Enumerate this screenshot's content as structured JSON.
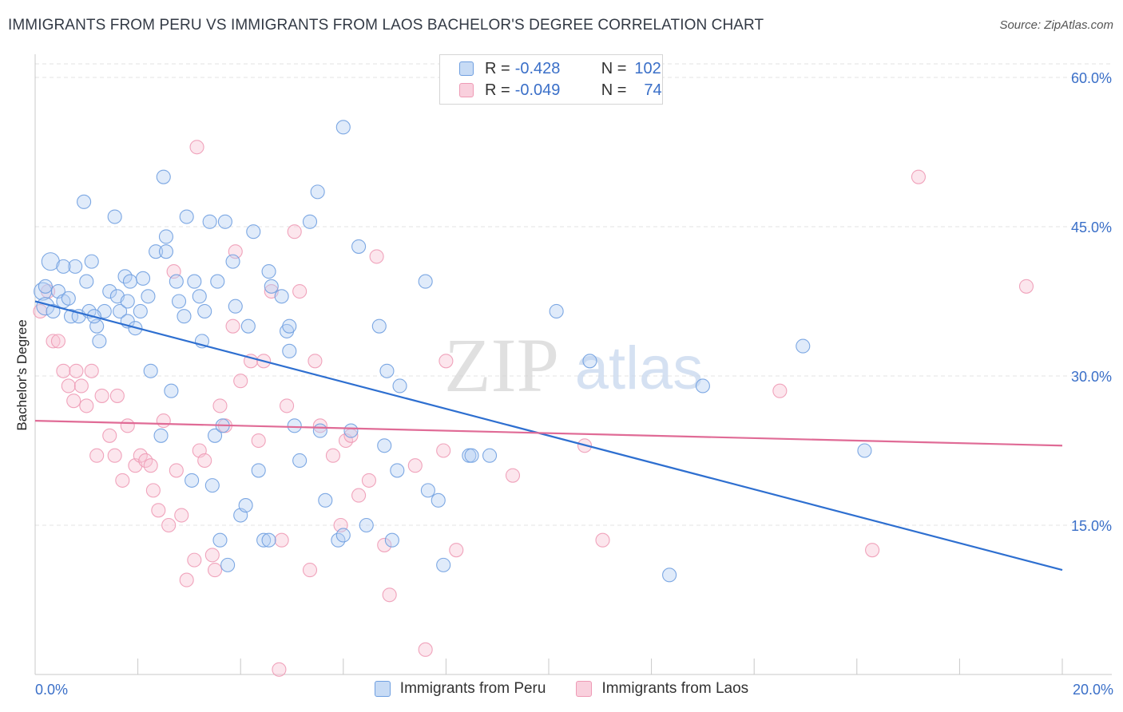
{
  "title": "IMMIGRANTS FROM PERU VS IMMIGRANTS FROM LAOS BACHELOR'S DEGREE CORRELATION CHART",
  "source": "Source: ZipAtlas.com",
  "watermark": {
    "zip": "ZIP",
    "atlas": "atlas"
  },
  "legend": {
    "peru": {
      "r_label": "R =",
      "r_value": "-0.428",
      "n_label": "N =",
      "n_value": "102"
    },
    "laos": {
      "r_label": "R =",
      "r_value": "-0.049",
      "n_label": "N =",
      "n_value": "74"
    }
  },
  "chart_data": {
    "type": "scatter",
    "ylabel": "Bachelor's Degree",
    "xlabel": "",
    "xlim": [
      0,
      20
    ],
    "ylim": [
      0,
      60
    ],
    "x_tick_labels": [
      "0.0%",
      "20.0%"
    ],
    "y_ticks": [
      15,
      30,
      45,
      60
    ],
    "y_tick_labels": [
      "15.0%",
      "30.0%",
      "45.0%",
      "60.0%"
    ],
    "grid": true,
    "legend_position": "bottom",
    "colors": {
      "peru": "#6f9fe0",
      "peru_line": "#2e6fd0",
      "laos": "#ee9ab5",
      "laos_line": "#e06b96",
      "tick_text": "#3a6fc8"
    },
    "series": [
      {
        "name": "Immigrants from Peru",
        "trend": {
          "x": [
            0,
            20
          ],
          "y": [
            37.5,
            10.5
          ]
        },
        "points": [
          [
            0.15,
            38.5
          ],
          [
            0.2,
            37.0
          ],
          [
            0.3,
            41.5
          ],
          [
            0.35,
            36.5
          ],
          [
            0.45,
            38.5
          ],
          [
            0.55,
            37.5
          ],
          [
            0.65,
            37.8
          ],
          [
            0.7,
            36.0
          ],
          [
            0.78,
            41.0
          ],
          [
            0.85,
            36.0
          ],
          [
            0.95,
            47.5
          ],
          [
            1.05,
            36.5
          ],
          [
            1.1,
            41.5
          ],
          [
            1.2,
            35.0
          ],
          [
            1.25,
            33.5
          ],
          [
            1.35,
            36.5
          ],
          [
            1.45,
            38.5
          ],
          [
            1.55,
            46.0
          ],
          [
            1.6,
            38.0
          ],
          [
            1.65,
            36.5
          ],
          [
            1.75,
            40.0
          ],
          [
            1.8,
            35.5
          ],
          [
            1.85,
            39.5
          ],
          [
            1.95,
            34.8
          ],
          [
            2.05,
            36.5
          ],
          [
            2.1,
            39.8
          ],
          [
            2.2,
            38.0
          ],
          [
            2.25,
            30.5
          ],
          [
            2.35,
            42.5
          ],
          [
            2.45,
            24.0
          ],
          [
            2.5,
            50.0
          ],
          [
            2.55,
            44.0
          ],
          [
            2.65,
            28.5
          ],
          [
            2.75,
            39.5
          ],
          [
            2.8,
            37.5
          ],
          [
            2.9,
            36.0
          ],
          [
            2.95,
            46.0
          ],
          [
            3.05,
            19.5
          ],
          [
            3.1,
            39.5
          ],
          [
            3.2,
            38.0
          ],
          [
            3.25,
            33.5
          ],
          [
            3.3,
            36.5
          ],
          [
            3.4,
            45.5
          ],
          [
            3.45,
            19.0
          ],
          [
            3.5,
            24.0
          ],
          [
            3.55,
            39.5
          ],
          [
            3.6,
            13.5
          ],
          [
            3.7,
            45.5
          ],
          [
            3.75,
            11.0
          ],
          [
            3.85,
            41.5
          ],
          [
            3.9,
            37.0
          ],
          [
            4.0,
            16.0
          ],
          [
            4.1,
            17.0
          ],
          [
            4.15,
            35.0
          ],
          [
            4.25,
            44.5
          ],
          [
            4.35,
            20.5
          ],
          [
            4.45,
            13.5
          ],
          [
            4.55,
            40.5
          ],
          [
            4.6,
            39.0
          ],
          [
            4.8,
            38.0
          ],
          [
            4.9,
            34.5
          ],
          [
            4.95,
            32.5
          ],
          [
            5.05,
            25.0
          ],
          [
            5.15,
            21.5
          ],
          [
            5.35,
            45.5
          ],
          [
            5.5,
            48.5
          ],
          [
            5.55,
            24.5
          ],
          [
            5.65,
            17.5
          ],
          [
            5.9,
            13.5
          ],
          [
            6.0,
            14.0
          ],
          [
            6.15,
            24.5
          ],
          [
            6.3,
            43.0
          ],
          [
            6.45,
            15.0
          ],
          [
            6.7,
            35.0
          ],
          [
            6.8,
            23.0
          ],
          [
            6.85,
            30.5
          ],
          [
            6.95,
            13.5
          ],
          [
            7.05,
            20.5
          ],
          [
            7.1,
            29.0
          ],
          [
            7.6,
            39.5
          ],
          [
            7.65,
            18.5
          ],
          [
            7.85,
            17.5
          ],
          [
            7.95,
            11.0
          ],
          [
            8.45,
            22.0
          ],
          [
            8.5,
            22.0
          ],
          [
            8.85,
            22.0
          ],
          [
            6.0,
            55.0
          ],
          [
            4.55,
            13.5
          ],
          [
            4.95,
            35.0
          ],
          [
            10.15,
            36.5
          ],
          [
            10.8,
            31.5
          ],
          [
            12.35,
            10.0
          ],
          [
            13.0,
            29.0
          ],
          [
            14.95,
            33.0
          ],
          [
            16.15,
            22.5
          ],
          [
            0.2,
            39.0
          ],
          [
            0.55,
            41.0
          ],
          [
            1.15,
            36.0
          ],
          [
            2.55,
            42.5
          ],
          [
            3.65,
            25.0
          ],
          [
            1.8,
            37.5
          ],
          [
            1.0,
            39.5
          ]
        ]
      },
      {
        "name": "Immigrants from Laos",
        "trend": {
          "x": [
            0,
            20
          ],
          "y": [
            25.5,
            23.0
          ]
        },
        "points": [
          [
            0.1,
            36.5
          ],
          [
            0.25,
            38.5
          ],
          [
            0.35,
            33.5
          ],
          [
            0.45,
            33.5
          ],
          [
            0.55,
            30.5
          ],
          [
            0.65,
            29.0
          ],
          [
            0.75,
            27.5
          ],
          [
            0.8,
            30.5
          ],
          [
            0.9,
            29.0
          ],
          [
            1.0,
            27.0
          ],
          [
            1.1,
            30.5
          ],
          [
            1.2,
            22.0
          ],
          [
            1.3,
            28.0
          ],
          [
            1.45,
            24.0
          ],
          [
            1.55,
            22.0
          ],
          [
            1.6,
            28.0
          ],
          [
            1.7,
            19.5
          ],
          [
            1.8,
            25.0
          ],
          [
            1.95,
            21.0
          ],
          [
            2.05,
            22.0
          ],
          [
            2.15,
            21.5
          ],
          [
            2.25,
            21.0
          ],
          [
            2.3,
            18.5
          ],
          [
            2.4,
            16.5
          ],
          [
            2.5,
            25.5
          ],
          [
            2.6,
            15.0
          ],
          [
            2.7,
            40.5
          ],
          [
            2.75,
            20.5
          ],
          [
            2.85,
            16.0
          ],
          [
            2.95,
            9.5
          ],
          [
            3.1,
            11.5
          ],
          [
            3.15,
            53.0
          ],
          [
            3.2,
            22.5
          ],
          [
            3.3,
            21.5
          ],
          [
            3.45,
            12.0
          ],
          [
            3.5,
            10.5
          ],
          [
            3.6,
            27.0
          ],
          [
            3.7,
            25.0
          ],
          [
            3.85,
            35.0
          ],
          [
            3.9,
            42.5
          ],
          [
            4.0,
            29.5
          ],
          [
            4.2,
            31.5
          ],
          [
            4.35,
            23.5
          ],
          [
            4.45,
            31.5
          ],
          [
            4.6,
            38.5
          ],
          [
            4.75,
            0.5
          ],
          [
            4.8,
            13.5
          ],
          [
            4.9,
            27.0
          ],
          [
            5.05,
            44.5
          ],
          [
            5.15,
            38.5
          ],
          [
            5.35,
            10.5
          ],
          [
            5.45,
            31.5
          ],
          [
            5.55,
            25.0
          ],
          [
            5.8,
            22.0
          ],
          [
            5.95,
            15.0
          ],
          [
            6.05,
            23.5
          ],
          [
            6.15,
            24.0
          ],
          [
            6.3,
            18.0
          ],
          [
            6.5,
            19.5
          ],
          [
            6.65,
            42.0
          ],
          [
            6.8,
            13.0
          ],
          [
            6.9,
            8.0
          ],
          [
            7.4,
            21.0
          ],
          [
            7.6,
            2.5
          ],
          [
            7.95,
            22.5
          ],
          [
            8.0,
            31.5
          ],
          [
            8.2,
            12.5
          ],
          [
            9.3,
            20.0
          ],
          [
            10.7,
            23.0
          ],
          [
            11.05,
            13.5
          ],
          [
            14.5,
            28.5
          ],
          [
            16.3,
            12.5
          ],
          [
            17.2,
            50.0
          ],
          [
            19.3,
            39.0
          ]
        ]
      }
    ]
  },
  "bottom_legend": {
    "peru": "Immigrants from Peru",
    "laos": "Immigrants from Laos"
  }
}
